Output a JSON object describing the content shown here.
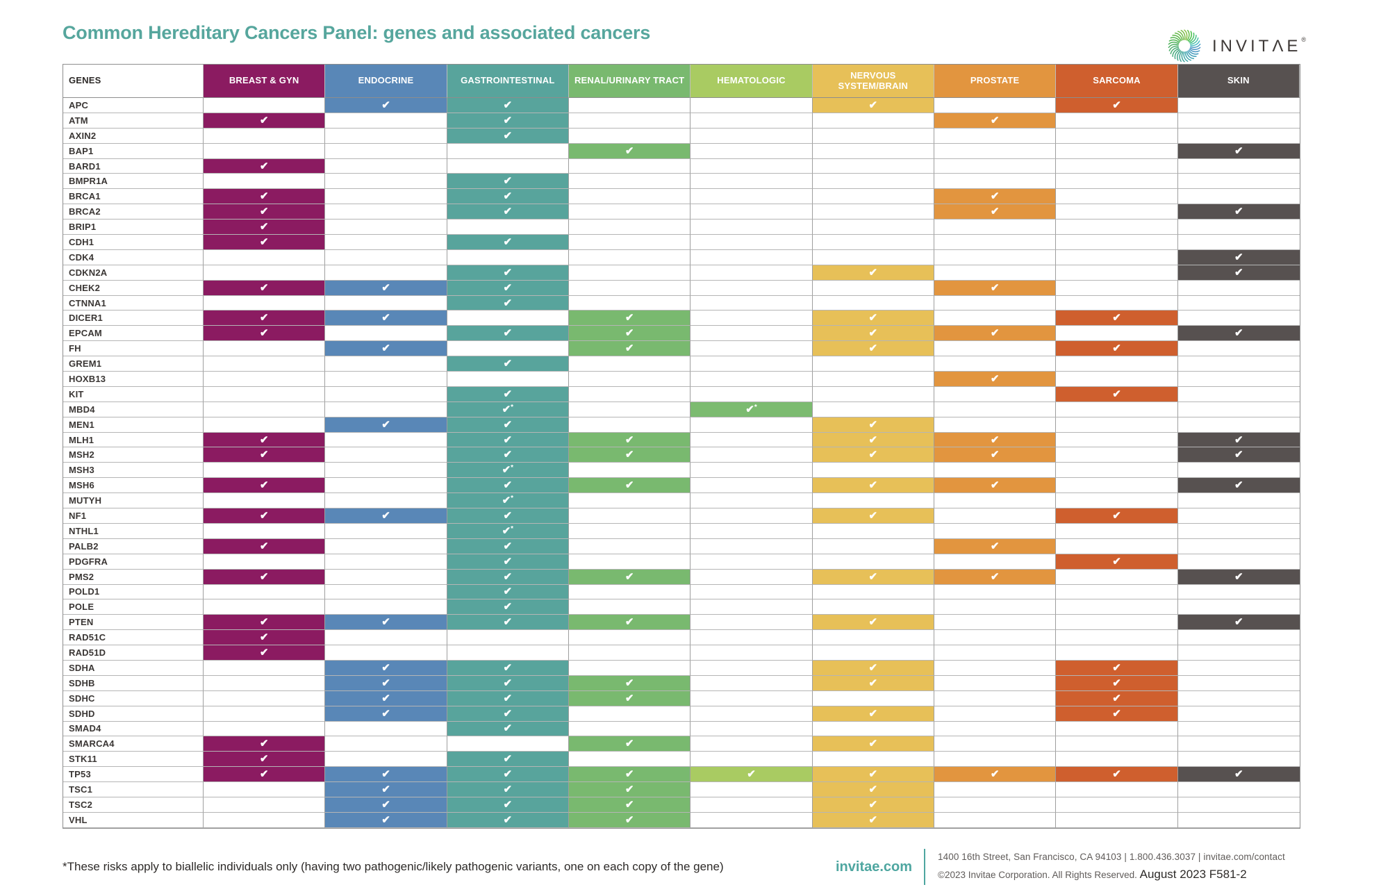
{
  "title": "Common Hereditary Cancers Panel: genes and associated cancers",
  "brand": {
    "name": "INVITΛE",
    "registered": "®"
  },
  "table": {
    "genes_header": "GENES",
    "check_glyph": "✔",
    "asterisk": "*",
    "columns": [
      {
        "id": "breast-gyn",
        "label": "BREAST & GYN",
        "color": "#8b1b61"
      },
      {
        "id": "endocrine",
        "label": "ENDOCRINE",
        "color": "#5987b7"
      },
      {
        "id": "gastrointestinal",
        "label": "GASTROINTESTINAL",
        "color": "#58a49c"
      },
      {
        "id": "renal-urinary",
        "label": "RENAL/URINARY TRACT",
        "color": "#79b96f"
      },
      {
        "id": "hematologic",
        "label": "HEMATOLOGIC",
        "color": "#a9cb62"
      },
      {
        "id": "nervous-brain",
        "label": "NERVOUS SYSTEM/BRAIN",
        "color": "#e7c058"
      },
      {
        "id": "prostate",
        "label": "PROSTATE",
        "color": "#e2953f"
      },
      {
        "id": "sarcoma",
        "label": "SARCOMA",
        "color": "#cf5f2e"
      },
      {
        "id": "skin",
        "label": "SKIN",
        "color": "#575150"
      }
    ],
    "rows": [
      {
        "gene": "APC",
        "checks": [
          0,
          1,
          1,
          0,
          0,
          1,
          0,
          1,
          0
        ]
      },
      {
        "gene": "ATM",
        "checks": [
          1,
          0,
          1,
          0,
          0,
          0,
          1,
          0,
          0
        ]
      },
      {
        "gene": "AXIN2",
        "checks": [
          0,
          0,
          1,
          0,
          0,
          0,
          0,
          0,
          0
        ]
      },
      {
        "gene": "BAP1",
        "checks": [
          0,
          0,
          0,
          1,
          0,
          0,
          0,
          0,
          1
        ]
      },
      {
        "gene": "BARD1",
        "checks": [
          1,
          0,
          0,
          0,
          0,
          0,
          0,
          0,
          0
        ]
      },
      {
        "gene": "BMPR1A",
        "checks": [
          0,
          0,
          1,
          0,
          0,
          0,
          0,
          0,
          0
        ]
      },
      {
        "gene": "BRCA1",
        "checks": [
          1,
          0,
          1,
          0,
          0,
          0,
          1,
          0,
          0
        ]
      },
      {
        "gene": "BRCA2",
        "checks": [
          1,
          0,
          1,
          0,
          0,
          0,
          1,
          0,
          1
        ]
      },
      {
        "gene": "BRIP1",
        "checks": [
          1,
          0,
          0,
          0,
          0,
          0,
          0,
          0,
          0
        ]
      },
      {
        "gene": "CDH1",
        "checks": [
          1,
          0,
          1,
          0,
          0,
          0,
          0,
          0,
          0
        ]
      },
      {
        "gene": "CDK4",
        "checks": [
          0,
          0,
          0,
          0,
          0,
          0,
          0,
          0,
          1
        ]
      },
      {
        "gene": "CDKN2A",
        "checks": [
          0,
          0,
          1,
          0,
          0,
          1,
          0,
          0,
          1
        ]
      },
      {
        "gene": "CHEK2",
        "checks": [
          1,
          1,
          1,
          0,
          0,
          0,
          1,
          0,
          0
        ]
      },
      {
        "gene": "CTNNA1",
        "checks": [
          0,
          0,
          1,
          0,
          0,
          0,
          0,
          0,
          0
        ]
      },
      {
        "gene": "DICER1",
        "checks": [
          1,
          1,
          0,
          1,
          0,
          1,
          0,
          1,
          0
        ]
      },
      {
        "gene": "EPCAM",
        "checks": [
          1,
          0,
          1,
          1,
          0,
          1,
          1,
          0,
          1
        ]
      },
      {
        "gene": "FH",
        "checks": [
          0,
          1,
          0,
          1,
          0,
          1,
          0,
          1,
          0
        ]
      },
      {
        "gene": "GREM1",
        "checks": [
          0,
          0,
          1,
          0,
          0,
          0,
          0,
          0,
          0
        ]
      },
      {
        "gene": "HOXB13",
        "checks": [
          0,
          0,
          0,
          0,
          0,
          0,
          1,
          0,
          0
        ]
      },
      {
        "gene": "KIT",
        "checks": [
          0,
          0,
          1,
          0,
          0,
          0,
          0,
          1,
          0
        ]
      },
      {
        "gene": "MBD4",
        "checks": [
          0,
          0,
          2,
          0,
          2,
          0,
          0,
          0,
          0
        ],
        "cell_colors": {
          "4": "#7cbb70"
        }
      },
      {
        "gene": "MEN1",
        "checks": [
          0,
          1,
          1,
          0,
          0,
          1,
          0,
          0,
          0
        ]
      },
      {
        "gene": "MLH1",
        "checks": [
          1,
          0,
          1,
          1,
          0,
          1,
          1,
          0,
          1
        ]
      },
      {
        "gene": "MSH2",
        "checks": [
          1,
          0,
          1,
          1,
          0,
          1,
          1,
          0,
          1
        ]
      },
      {
        "gene": "MSH3",
        "checks": [
          0,
          0,
          2,
          0,
          0,
          0,
          0,
          0,
          0
        ]
      },
      {
        "gene": "MSH6",
        "checks": [
          1,
          0,
          1,
          1,
          0,
          1,
          1,
          0,
          1
        ]
      },
      {
        "gene": "MUTYH",
        "checks": [
          0,
          0,
          2,
          0,
          0,
          0,
          0,
          0,
          0
        ]
      },
      {
        "gene": "NF1",
        "checks": [
          1,
          1,
          1,
          0,
          0,
          1,
          0,
          1,
          0
        ]
      },
      {
        "gene": "NTHL1",
        "checks": [
          0,
          0,
          2,
          0,
          0,
          0,
          0,
          0,
          0
        ]
      },
      {
        "gene": "PALB2",
        "checks": [
          1,
          0,
          1,
          0,
          0,
          0,
          1,
          0,
          0
        ]
      },
      {
        "gene": "PDGFRA",
        "checks": [
          0,
          0,
          1,
          0,
          0,
          0,
          0,
          1,
          0
        ]
      },
      {
        "gene": "PMS2",
        "checks": [
          1,
          0,
          1,
          1,
          0,
          1,
          1,
          0,
          1
        ]
      },
      {
        "gene": "POLD1",
        "checks": [
          0,
          0,
          1,
          0,
          0,
          0,
          0,
          0,
          0
        ]
      },
      {
        "gene": "POLE",
        "checks": [
          0,
          0,
          1,
          0,
          0,
          0,
          0,
          0,
          0
        ]
      },
      {
        "gene": "PTEN",
        "checks": [
          1,
          1,
          1,
          1,
          0,
          1,
          0,
          0,
          1
        ]
      },
      {
        "gene": "RAD51C",
        "checks": [
          1,
          0,
          0,
          0,
          0,
          0,
          0,
          0,
          0
        ]
      },
      {
        "gene": "RAD51D",
        "checks": [
          1,
          0,
          0,
          0,
          0,
          0,
          0,
          0,
          0
        ]
      },
      {
        "gene": "SDHA",
        "checks": [
          0,
          1,
          1,
          0,
          0,
          1,
          0,
          1,
          0
        ]
      },
      {
        "gene": "SDHB",
        "checks": [
          0,
          1,
          1,
          1,
          0,
          1,
          0,
          1,
          0
        ]
      },
      {
        "gene": "SDHC",
        "checks": [
          0,
          1,
          1,
          1,
          0,
          0,
          0,
          1,
          0
        ]
      },
      {
        "gene": "SDHD",
        "checks": [
          0,
          1,
          1,
          0,
          0,
          1,
          0,
          1,
          0
        ]
      },
      {
        "gene": "SMAD4",
        "checks": [
          0,
          0,
          1,
          0,
          0,
          0,
          0,
          0,
          0
        ]
      },
      {
        "gene": "SMARCA4",
        "checks": [
          1,
          0,
          0,
          1,
          0,
          1,
          0,
          0,
          0
        ]
      },
      {
        "gene": "STK11",
        "checks": [
          1,
          0,
          1,
          0,
          0,
          0,
          0,
          0,
          0
        ]
      },
      {
        "gene": "TP53",
        "checks": [
          1,
          1,
          1,
          1,
          1,
          1,
          1,
          1,
          1
        ]
      },
      {
        "gene": "TSC1",
        "checks": [
          0,
          1,
          1,
          1,
          0,
          1,
          0,
          0,
          0
        ]
      },
      {
        "gene": "TSC2",
        "checks": [
          0,
          1,
          1,
          1,
          0,
          1,
          0,
          0,
          0
        ]
      },
      {
        "gene": "VHL",
        "checks": [
          0,
          1,
          1,
          1,
          0,
          1,
          0,
          0,
          0
        ]
      }
    ]
  },
  "footnote": "*These risks apply to biallelic individuals only (having two pathogenic/likely pathogenic variants, one on each copy of the gene)",
  "footer": {
    "website": "invitae.com",
    "address_line": "1400 16th Street, San Francisco, CA 94103   |   1.800.436.3037   |   invitae.com/contact",
    "copyright": "©2023 Invitae Corporation. All Rights Reserved. ",
    "doc_code": "August 2023 F581-2"
  }
}
